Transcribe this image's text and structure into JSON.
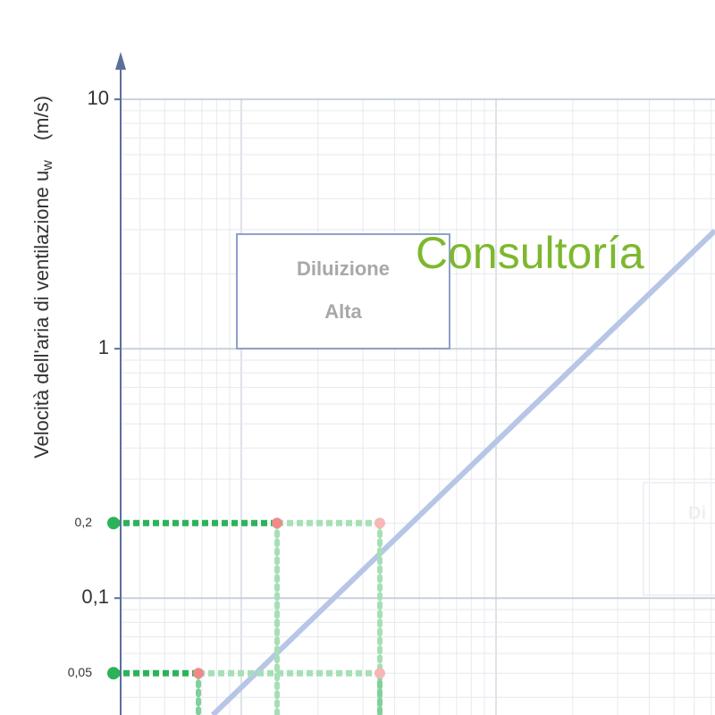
{
  "chart_data": {
    "type": "line",
    "y_label": "Velocità dell'aria di ventilazione u",
    "y_label_sub": "w",
    "y_label_unit": "(m/s)",
    "log_y": true,
    "ylim": [
      0.034,
      15
    ],
    "yticks": [
      10,
      1,
      {
        "value": 0.1,
        "label": "0,1"
      }
    ],
    "grid": true,
    "markers": [
      {
        "value": 0.2,
        "label": "0,2"
      },
      {
        "value": 0.05,
        "label": "0,05"
      }
    ],
    "box_label": [
      "Diluizione",
      "Alta"
    ],
    "faint_box_label": "Di",
    "watermark": "Consultoría"
  }
}
